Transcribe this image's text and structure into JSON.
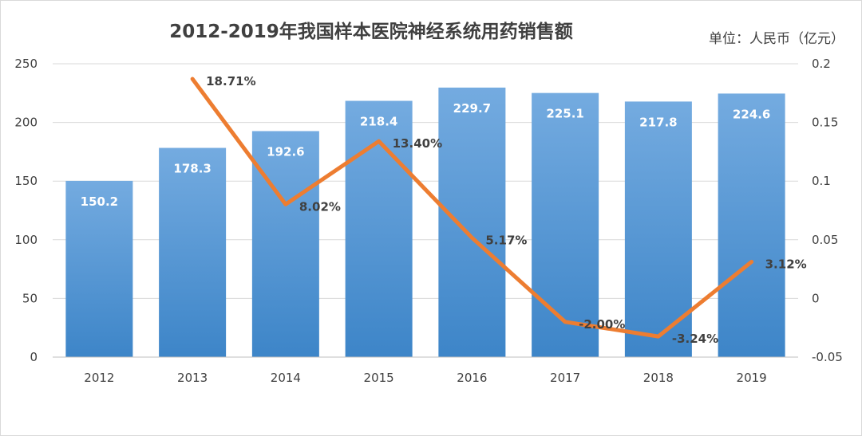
{
  "chart_data": {
    "type": "bar",
    "title": "2012-2019年我国样本医院神经系统用药销售额",
    "unit_label": "单位：人民币（亿元）",
    "categories": [
      "2012",
      "2013",
      "2014",
      "2015",
      "2016",
      "2017",
      "2018",
      "2019"
    ],
    "series": [
      {
        "type": "bar",
        "axis": "left",
        "values": [
          150.2,
          178.3,
          192.6,
          218.4,
          229.7,
          225.1,
          217.8,
          224.6
        ],
        "labels": [
          "150.2",
          "178.3",
          "192.6",
          "218.4",
          "229.7",
          "225.1",
          "217.8",
          "224.6"
        ],
        "color": "#5b9bd5"
      },
      {
        "type": "line",
        "axis": "right",
        "values": [
          null,
          0.1871,
          0.0802,
          0.134,
          0.0517,
          -0.02,
          -0.0324,
          0.0312
        ],
        "labels": [
          null,
          "18.71%",
          "8.02%",
          "13.40%",
          "5.17%",
          "-2.00%",
          "-3.24%",
          "3.12%"
        ],
        "color": "#ed7d31"
      }
    ],
    "y_left": {
      "min": 0,
      "max": 250,
      "ticks": [
        "0",
        "50",
        "100",
        "150",
        "200",
        "250"
      ]
    },
    "y_right": {
      "min": -0.05,
      "max": 0.2,
      "ticks": [
        "-0.05",
        "0",
        "0.05",
        "0.1",
        "0.15",
        "0.2"
      ]
    },
    "grid": true,
    "legend": "none"
  }
}
